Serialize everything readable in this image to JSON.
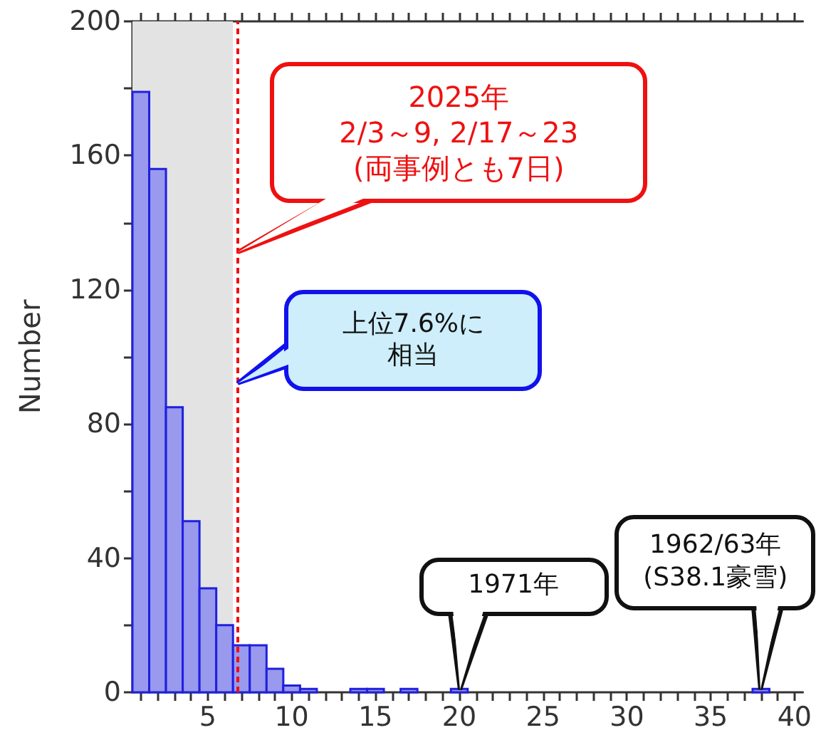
{
  "chart_data": {
    "type": "histogram",
    "ylabel": "Number",
    "bins": [
      0.5,
      1.5,
      2.5,
      3.5,
      4.5,
      5.5,
      6.5,
      7.5,
      8.5,
      9.5,
      10.5,
      11.5,
      12.5,
      13.5,
      14.5,
      15.5,
      16.5,
      17.5,
      18.5,
      19.5,
      20.5,
      21.5,
      22.5,
      23.5,
      24.5,
      25.5,
      26.5,
      27.5,
      28.5,
      29.5,
      30.5,
      31.5,
      32.5,
      33.5,
      34.5,
      35.5,
      36.5,
      37.5,
      38.5,
      39.5,
      40.5
    ],
    "values": [
      179,
      156,
      85,
      51,
      31,
      20,
      14,
      14,
      7,
      2,
      1,
      0,
      0,
      1,
      1,
      0,
      1,
      0,
      0,
      1,
      0,
      0,
      0,
      0,
      0,
      0,
      0,
      0,
      0,
      0,
      0,
      0,
      0,
      0,
      0,
      0,
      0,
      1,
      0,
      0
    ],
    "color": "#9999ee",
    "xlim": [
      0.5,
      40.5
    ],
    "xticks": [
      {
        "value": 1,
        "label": null
      },
      {
        "value": 2,
        "label": null
      },
      {
        "value": 3,
        "label": null
      },
      {
        "value": 4,
        "label": null
      },
      5,
      {
        "value": 6,
        "label": null
      },
      {
        "value": 7,
        "label": null
      },
      {
        "value": 8,
        "label": null
      },
      {
        "value": 9,
        "label": null
      },
      10,
      {
        "value": 11,
        "label": null
      },
      {
        "value": 12,
        "label": null
      },
      {
        "value": 13,
        "label": null
      },
      {
        "value": 14,
        "label": null
      },
      15,
      {
        "value": 16,
        "label": null
      },
      {
        "value": 17,
        "label": null
      },
      {
        "value": 18,
        "label": null
      },
      {
        "value": 19,
        "label": null
      },
      20,
      {
        "value": 21,
        "label": null
      },
      {
        "value": 22,
        "label": null
      },
      {
        "value": 23,
        "label": null
      },
      {
        "value": 24,
        "label": null
      },
      25,
      {
        "value": 26,
        "label": null
      },
      {
        "value": 27,
        "label": null
      },
      {
        "value": 28,
        "label": null
      },
      {
        "value": 29,
        "label": null
      },
      30,
      {
        "value": 31,
        "label": null
      },
      {
        "value": 32,
        "label": null
      },
      {
        "value": 33,
        "label": null
      },
      {
        "value": 34,
        "label": null
      },
      35,
      {
        "value": 36,
        "label": null
      },
      {
        "value": 37,
        "label": null
      },
      {
        "value": 38,
        "label": null
      },
      {
        "value": 39,
        "label": null
      },
      40
    ],
    "ylim": [
      0,
      200
    ],
    "yticks": [
      0,
      {
        "value": 20,
        "label": null
      },
      40,
      {
        "value": 60,
        "label": null
      },
      80,
      {
        "value": 100,
        "label": null
      },
      120,
      {
        "value": 140,
        "label": null
      },
      160,
      {
        "value": 180,
        "label": null
      },
      200
    ],
    "grid": false,
    "bands": [
      {
        "axis": "x",
        "from": 0.5,
        "to": 6.5,
        "label": null,
        "color": "#e3e3e3"
      }
    ],
    "ref_lines": [
      {
        "axis": "x",
        "value": 6.8,
        "label": null,
        "color": "#ee1111",
        "line_style": "dashed"
      }
    ],
    "annotations": [
      "2025年\n2/3～9, 2/17～23\n(両事例とも7日)",
      "上位7.6%に相当",
      {
        "text": "1971年",
        "x": 20,
        "y": 1
      },
      {
        "text": "1962/63年\n(S38.1豪雪)",
        "x": 38,
        "y": 1
      }
    ]
  }
}
